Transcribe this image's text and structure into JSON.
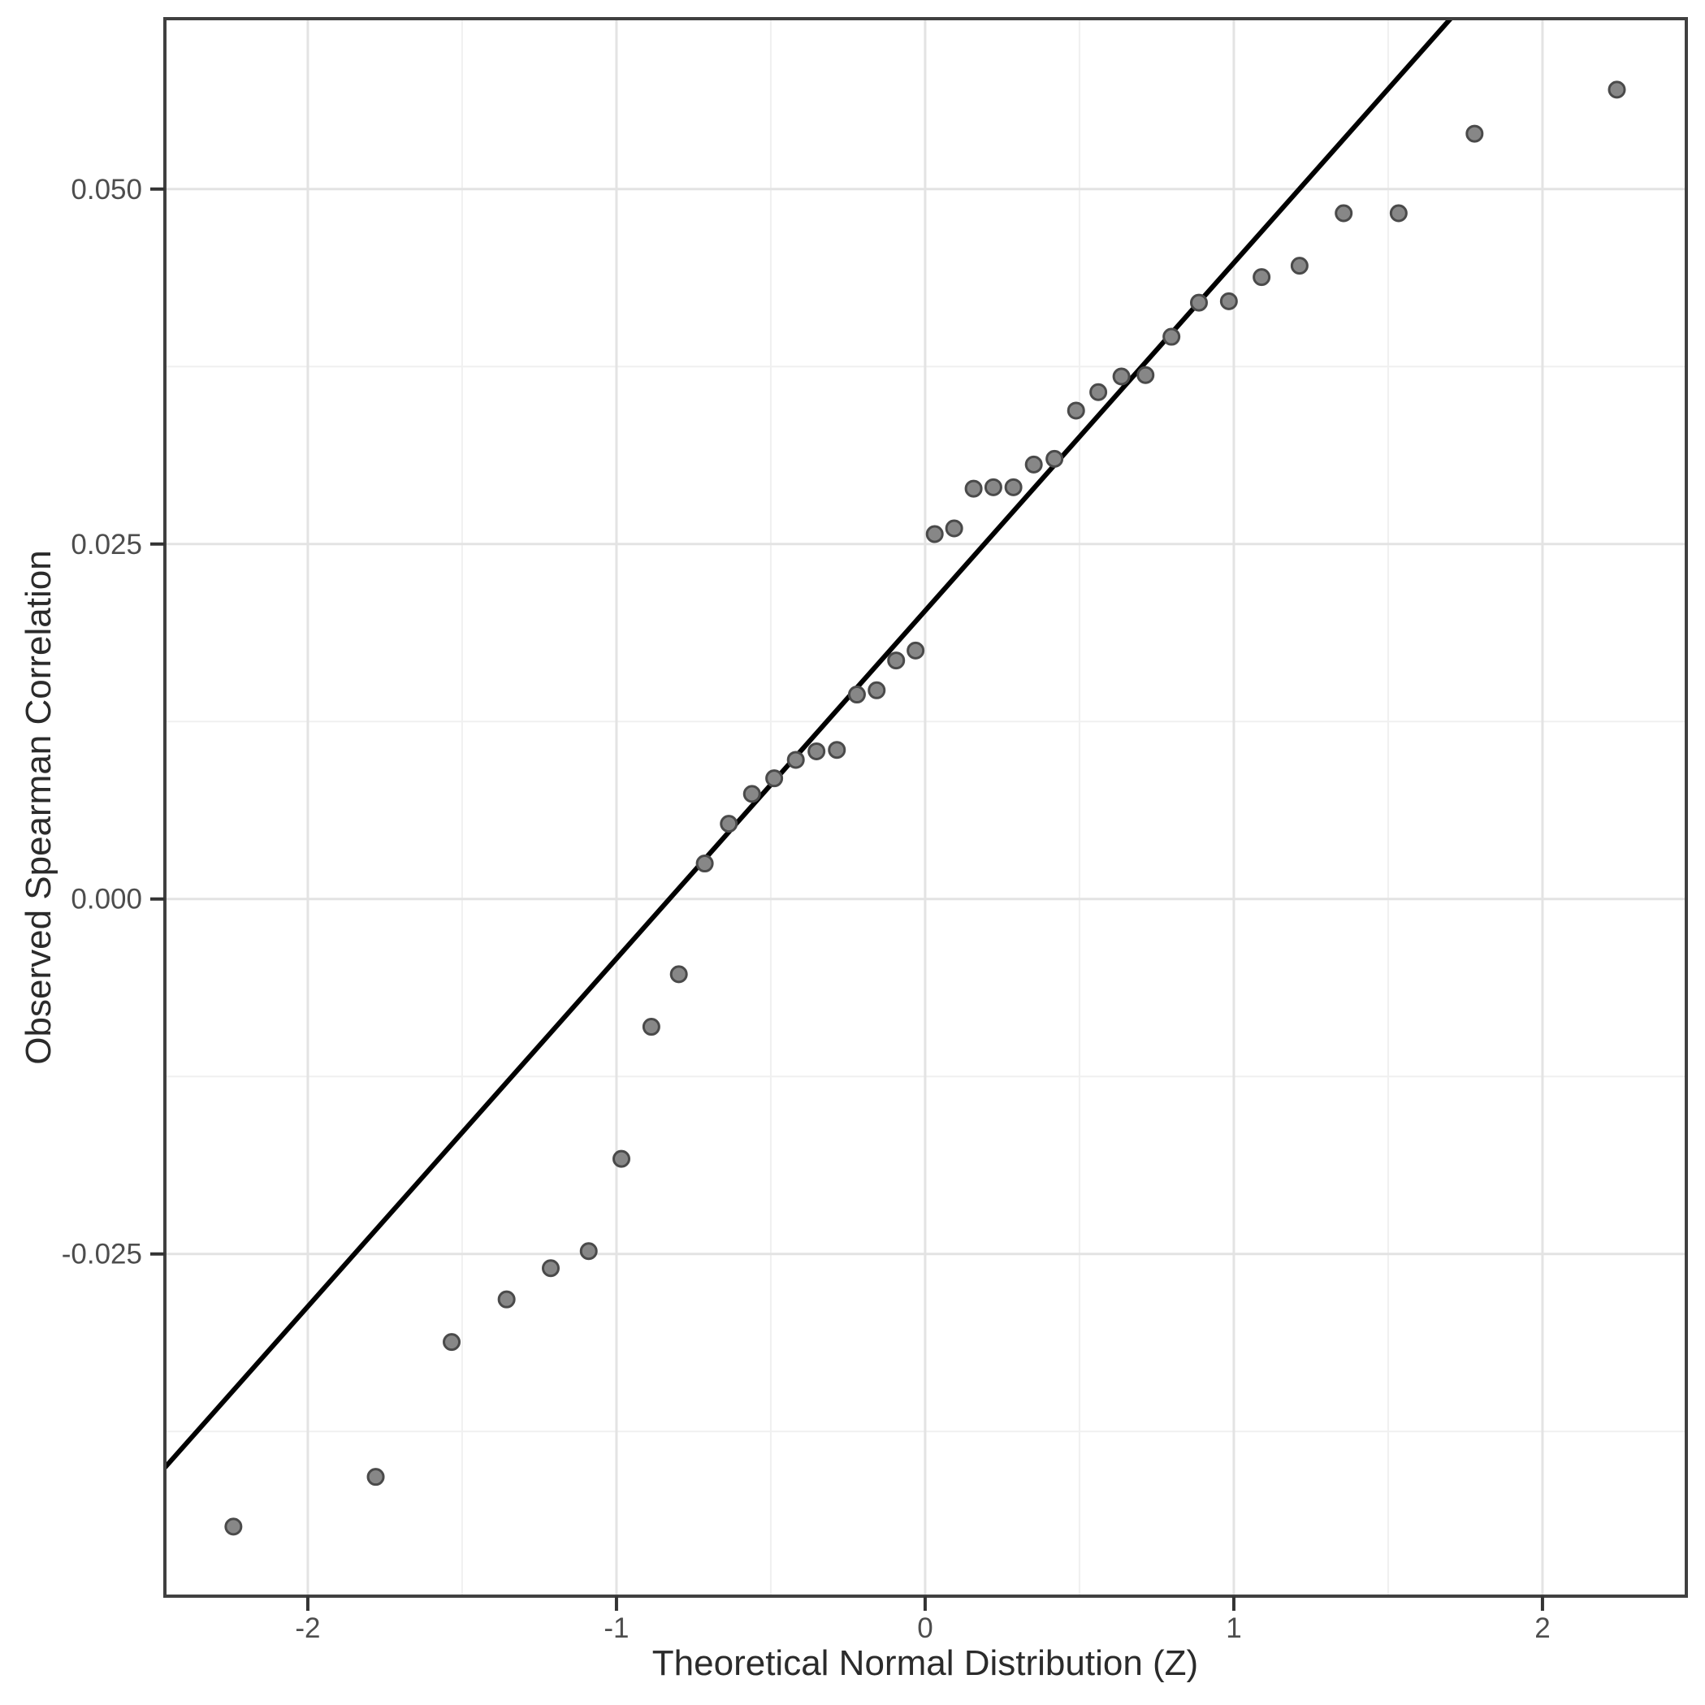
{
  "chart_data": {
    "type": "scatter",
    "title": "",
    "xlabel": "Theoretical Normal Distribution (Z)",
    "ylabel": "Observed Spearman Correlation",
    "xlim": [
      -2.463,
      2.466
    ],
    "ylim": [
      -0.0491,
      0.062
    ],
    "x_ticks": [
      -2,
      -1,
      0,
      1,
      2
    ],
    "x_tick_labels": [
      "-2",
      "-1",
      "0",
      "1",
      "2"
    ],
    "y_ticks": [
      -0.025,
      0.0,
      0.025,
      0.05
    ],
    "y_tick_labels": [
      "-0.025",
      "0.000",
      "0.025",
      "0.050"
    ],
    "x_minor_gridlines": [
      -1.5,
      -0.5,
      0.5,
      1.5
    ],
    "y_minor_gridlines": [
      -0.0375,
      -0.0125,
      0.0125,
      0.0375
    ],
    "grid": "major+minor",
    "legend": "none",
    "ref_line": {
      "intercept": 0.0203,
      "slope": 0.0245
    },
    "points": [
      [
        -2.241,
        -0.0442
      ],
      [
        -1.78,
        -0.0407
      ],
      [
        -1.534,
        -0.0312
      ],
      [
        -1.356,
        -0.0282
      ],
      [
        -1.213,
        -0.026
      ],
      [
        -1.09,
        -0.0248
      ],
      [
        -0.984,
        -0.0183
      ],
      [
        -0.887,
        -0.009
      ],
      [
        -0.798,
        -0.0053
      ],
      [
        -0.714,
        0.0025
      ],
      [
        -0.636,
        0.0053
      ],
      [
        -0.561,
        0.0074
      ],
      [
        -0.489,
        0.0085
      ],
      [
        -0.419,
        0.0098
      ],
      [
        -0.352,
        0.0104
      ],
      [
        -0.286,
        0.0105
      ],
      [
        -0.221,
        0.0144
      ],
      [
        -0.157,
        0.0147
      ],
      [
        -0.094,
        0.0168
      ],
      [
        -0.031,
        0.0175
      ],
      [
        0.031,
        0.0257
      ],
      [
        0.094,
        0.0261
      ],
      [
        0.157,
        0.0289
      ],
      [
        0.221,
        0.029
      ],
      [
        0.286,
        0.029
      ],
      [
        0.352,
        0.0306
      ],
      [
        0.419,
        0.031
      ],
      [
        0.489,
        0.0344
      ],
      [
        0.561,
        0.0357
      ],
      [
        0.636,
        0.0368
      ],
      [
        0.714,
        0.0369
      ],
      [
        0.798,
        0.0396
      ],
      [
        0.887,
        0.042
      ],
      [
        0.984,
        0.0421
      ],
      [
        1.09,
        0.0438
      ],
      [
        1.213,
        0.0446
      ],
      [
        1.356,
        0.0483
      ],
      [
        1.534,
        0.0483
      ],
      [
        1.78,
        0.0539
      ],
      [
        2.241,
        0.057
      ]
    ]
  },
  "style": {
    "background": "#ffffff",
    "panel_background": "#ffffff",
    "panel_border": "#404040",
    "grid_major": "#e3e3e3",
    "grid_minor": "#f0f0f0",
    "point_fill": "#878787",
    "point_stroke": "#4a4a4a",
    "ref_line_color": "#000000",
    "tick_color": "#333333",
    "tick_label_color": "#4d4d4d",
    "axis_title_color": "#2b2b2b"
  }
}
